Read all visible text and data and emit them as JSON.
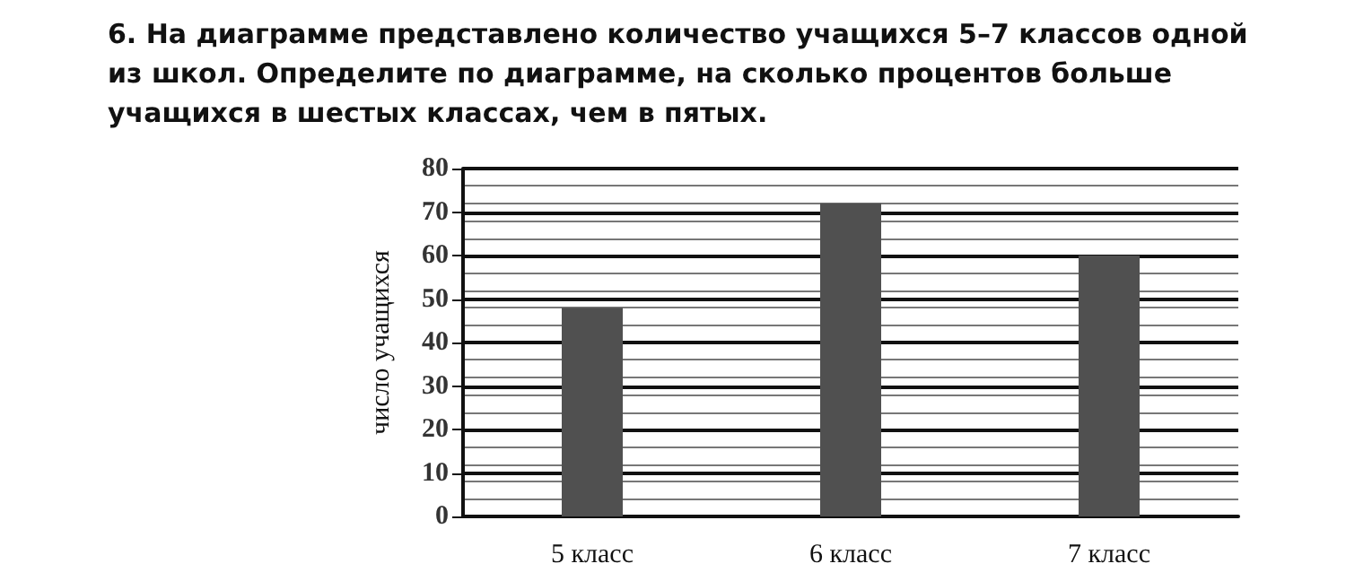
{
  "chart_data": {
    "type": "bar",
    "title": "6. На диаграмме представлено количество учащихся 5–7 классов одной из школ. Определите по диаграмме, на сколько процентов больше учащихся в шестых классах, чем в пятых.",
    "ylabel": "число учащихся",
    "categories": [
      "5 класс",
      "6 класс",
      "7 класс"
    ],
    "values": [
      48,
      72,
      60
    ],
    "color": "#505050",
    "ylim": [
      0,
      80
    ],
    "yticks": [
      0,
      10,
      20,
      30,
      40,
      50,
      60,
      70,
      80
    ],
    "grid": "y"
  }
}
